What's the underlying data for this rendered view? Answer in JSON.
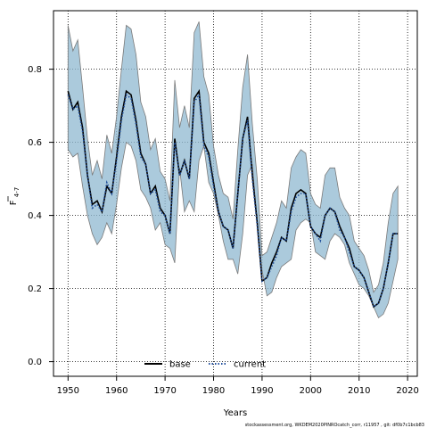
{
  "chart_data": {
    "type": "line",
    "xlabel": "Years",
    "ylabel_main": "F",
    "ylabel_sub": "4-7",
    "xlim": [
      1947,
      2022
    ],
    "ylim": [
      -0.04,
      0.96
    ],
    "x_ticks": [
      1950,
      1960,
      1970,
      1980,
      1990,
      2000,
      2010,
      2020
    ],
    "y_ticks": [
      0.0,
      0.2,
      0.4,
      0.6,
      0.8
    ],
    "y_tick_labels": [
      "0.0",
      "0.2",
      "0.4",
      "0.6",
      "0.8"
    ],
    "grid": true,
    "legend_position": "bottom-left",
    "band_color": "#8fb8d0",
    "band_outline": "#7a7a7a",
    "years": [
      1950,
      1951,
      1952,
      1953,
      1954,
      1955,
      1956,
      1957,
      1958,
      1959,
      1960,
      1961,
      1962,
      1963,
      1964,
      1965,
      1966,
      1967,
      1968,
      1969,
      1970,
      1971,
      1972,
      1973,
      1974,
      1975,
      1976,
      1977,
      1978,
      1979,
      1980,
      1981,
      1982,
      1983,
      1984,
      1985,
      1986,
      1987,
      1988,
      1989,
      1990,
      1991,
      1992,
      1993,
      1994,
      1995,
      1996,
      1997,
      1998,
      1999,
      2000,
      2001,
      2002,
      2003,
      2004,
      2005,
      2006,
      2007,
      2008,
      2009,
      2010,
      2011,
      2012,
      2013,
      2014,
      2015,
      2016,
      2017,
      2018
    ],
    "series": [
      {
        "name": "base",
        "color": "#000000",
        "style": "solid",
        "values": [
          0.74,
          0.69,
          0.71,
          0.64,
          0.51,
          0.43,
          0.44,
          0.41,
          0.48,
          0.46,
          0.56,
          0.67,
          0.74,
          0.73,
          0.66,
          0.57,
          0.54,
          0.46,
          0.48,
          0.42,
          0.4,
          0.35,
          0.61,
          0.51,
          0.55,
          0.5,
          0.72,
          0.74,
          0.6,
          0.57,
          0.49,
          0.41,
          0.37,
          0.36,
          0.31,
          0.46,
          0.61,
          0.67,
          0.51,
          0.38,
          0.22,
          0.23,
          0.27,
          0.3,
          0.34,
          0.33,
          0.42,
          0.46,
          0.47,
          0.46,
          0.37,
          0.35,
          0.34,
          0.4,
          0.42,
          0.41,
          0.37,
          0.34,
          0.31,
          0.26,
          0.25,
          0.23,
          0.19,
          0.15,
          0.16,
          0.2,
          0.27,
          0.35,
          0.35
        ],
        "lower": [
          0.58,
          0.56,
          0.57,
          0.48,
          0.4,
          0.35,
          0.32,
          0.34,
          0.38,
          0.35,
          0.43,
          0.53,
          0.6,
          0.59,
          0.55,
          0.47,
          0.45,
          0.42,
          0.36,
          0.38,
          0.32,
          0.31,
          0.27,
          0.53,
          0.41,
          0.44,
          0.41,
          0.55,
          0.59,
          0.49,
          0.46,
          0.4,
          0.33,
          0.28,
          0.28,
          0.24,
          0.35,
          0.51,
          0.54,
          0.38,
          0.25,
          0.18,
          0.19,
          0.23,
          0.26,
          0.27,
          0.28,
          0.36,
          0.38,
          0.39,
          0.38,
          0.3,
          0.29,
          0.28,
          0.33,
          0.35,
          0.34,
          0.32,
          0.27,
          0.24,
          0.21,
          0.2,
          0.18,
          0.15,
          0.12,
          0.13,
          0.16,
          0.22,
          0.28
        ],
        "upper": [
          0.92,
          0.85,
          0.88,
          0.75,
          0.61,
          0.51,
          0.55,
          0.5,
          0.62,
          0.57,
          0.67,
          0.8,
          0.92,
          0.91,
          0.84,
          0.71,
          0.67,
          0.58,
          0.61,
          0.52,
          0.5,
          0.44,
          0.77,
          0.64,
          0.7,
          0.64,
          0.9,
          0.93,
          0.78,
          0.73,
          0.59,
          0.51,
          0.46,
          0.45,
          0.39,
          0.58,
          0.75,
          0.84,
          0.65,
          0.5,
          0.29,
          0.3,
          0.34,
          0.38,
          0.44,
          0.42,
          0.53,
          0.56,
          0.58,
          0.57,
          0.46,
          0.43,
          0.42,
          0.51,
          0.53,
          0.53,
          0.45,
          0.42,
          0.4,
          0.33,
          0.31,
          0.29,
          0.25,
          0.19,
          0.21,
          0.27,
          0.38,
          0.46,
          0.48
        ]
      },
      {
        "name": "current",
        "color": "#1f4e9c",
        "style": "dotted",
        "values": [
          0.73,
          0.69,
          0.7,
          0.63,
          0.51,
          0.42,
          0.43,
          0.41,
          0.49,
          0.46,
          0.55,
          0.66,
          0.73,
          0.72,
          0.65,
          0.56,
          0.54,
          0.46,
          0.47,
          0.41,
          0.4,
          0.35,
          0.6,
          0.51,
          0.55,
          0.5,
          0.71,
          0.73,
          0.59,
          0.56,
          0.48,
          0.41,
          0.37,
          0.36,
          0.31,
          0.46,
          0.61,
          0.66,
          0.5,
          0.37,
          0.22,
          0.23,
          0.26,
          0.29,
          0.34,
          0.33,
          0.41,
          0.45,
          0.46,
          0.46,
          0.37,
          0.35,
          0.33,
          0.4,
          0.42,
          0.41,
          0.36,
          0.34,
          0.3,
          0.26,
          0.25,
          0.23,
          0.19,
          0.15,
          0.16,
          0.2,
          0.27,
          0.35,
          0.35
        ]
      }
    ],
    "footnote": "stockassessment.org, WKDEM2020PINROcatch_corr, r11957 , git: df0b7c1bcb83"
  }
}
